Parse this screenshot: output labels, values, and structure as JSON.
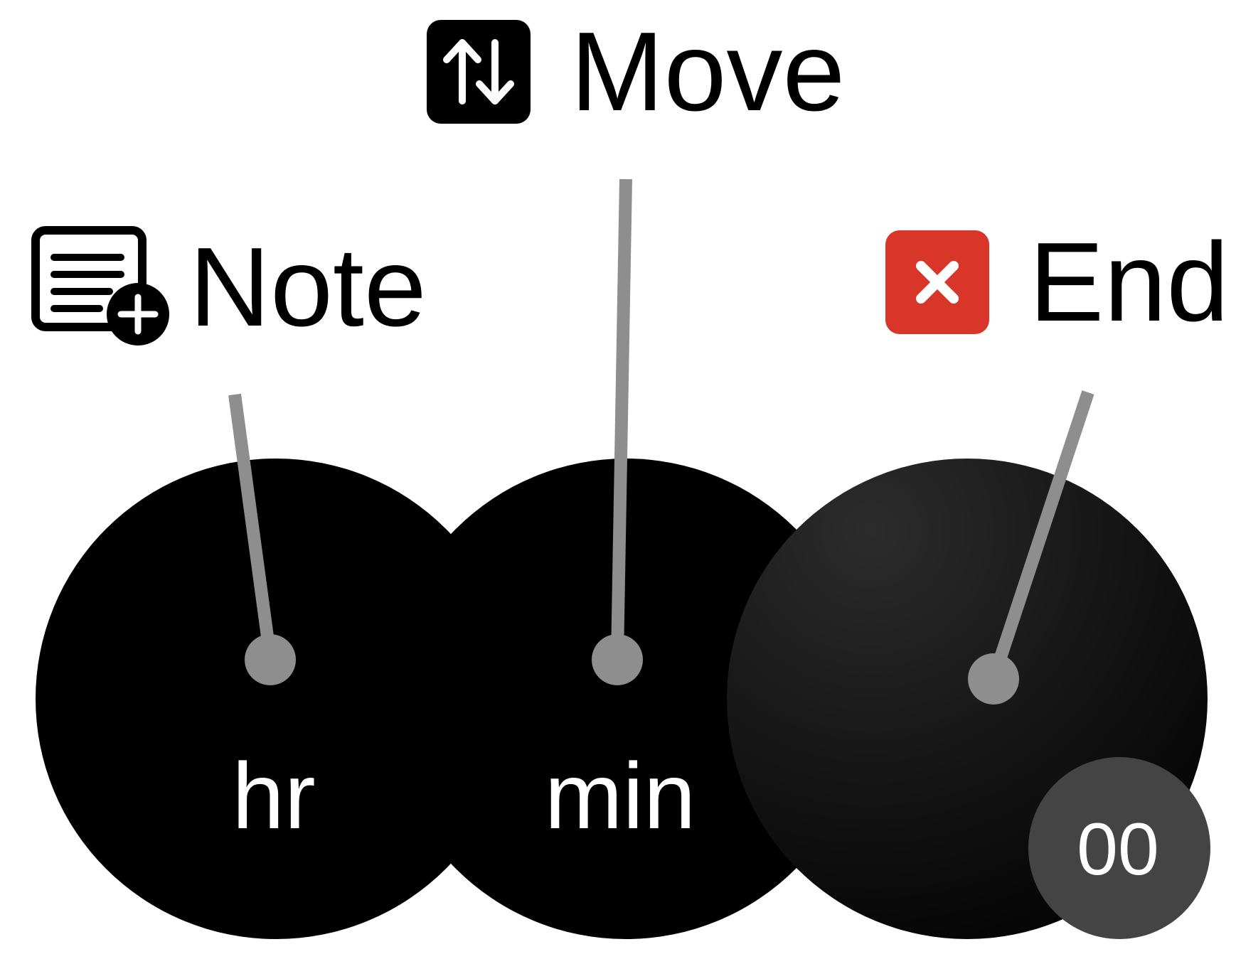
{
  "actions": {
    "note": {
      "label": "Note",
      "icon": "note-add-icon"
    },
    "move": {
      "label": "Move",
      "icon": "arrows-up-down-icon"
    },
    "end": {
      "label": "End",
      "icon": "close-x-icon"
    }
  },
  "dials": {
    "hours": {
      "label": "hr"
    },
    "minutes": {
      "label": "min"
    },
    "seconds": {
      "value": "00"
    }
  },
  "colors": {
    "dial_fill": "#000000",
    "pointer": "#8e8e8e",
    "end_accent": "#d9362a",
    "seconds_badge": "#444444",
    "label_text": "#000000"
  }
}
